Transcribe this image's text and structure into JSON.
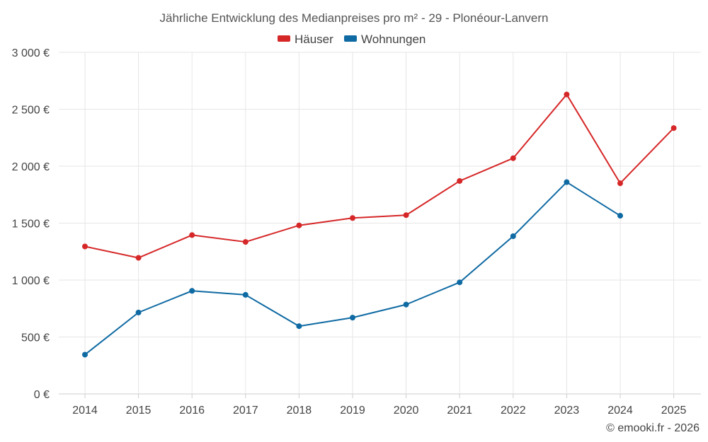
{
  "chart_data": {
    "type": "line",
    "title": "Jährliche Entwicklung des Medianpreises pro m² - 29 - Plonéour-Lanvern",
    "categories": [
      "2014",
      "2015",
      "2016",
      "2017",
      "2018",
      "2019",
      "2020",
      "2021",
      "2022",
      "2023",
      "2024",
      "2025"
    ],
    "series": [
      {
        "name": "Häuser",
        "color": "#d62728",
        "values": [
          1295,
          1195,
          1395,
          1335,
          1480,
          1545,
          1570,
          1870,
          2070,
          2630,
          1850,
          2335
        ]
      },
      {
        "name": "Wohnungen",
        "color": "#0f6aa3",
        "values": [
          345,
          715,
          905,
          870,
          595,
          670,
          785,
          980,
          1385,
          1860,
          1565,
          null
        ]
      }
    ],
    "ylim": [
      0,
      3000
    ],
    "yticks": [
      0,
      500,
      1000,
      1500,
      2000,
      2500,
      3000
    ],
    "ytick_labels": [
      "0 €",
      "500 €",
      "1 000 €",
      "1 500 €",
      "2 000 €",
      "2 500 €",
      "3 000 €"
    ],
    "legend_position": "top-center",
    "grid": true
  },
  "credit": "© emooki.fr - 2026"
}
